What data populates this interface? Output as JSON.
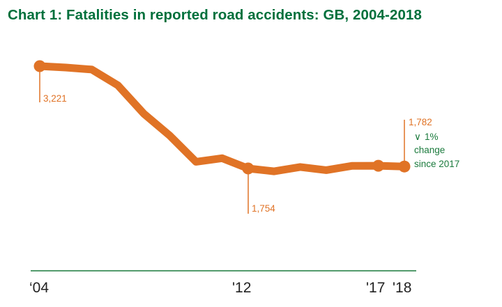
{
  "chart_data": {
    "type": "line",
    "title": "Chart 1: Fatalities in reported road accidents: GB, 2004-2018",
    "xlabel": "",
    "ylabel": "",
    "x": [
      2004,
      2005,
      2006,
      2007,
      2008,
      2009,
      2010,
      2011,
      2012,
      2013,
      2014,
      2015,
      2016,
      2017,
      2018
    ],
    "series": [
      {
        "values": [
          3221,
          3201,
          3172,
          2946,
          2538,
          2222,
          1850,
          1901,
          1754,
          1713,
          1775,
          1730,
          1792,
          1793,
          1782
        ]
      }
    ],
    "highlighted_points": [
      2004,
      2012,
      2017,
      2018
    ],
    "ylim": [
      1000,
      3500
    ],
    "grid": false,
    "line_color": "#e07326",
    "tick_labels": [
      {
        "x": 2004,
        "label": "‘04"
      },
      {
        "x": 2012,
        "label": "'12"
      },
      {
        "x": 2017,
        "label": "'17"
      },
      {
        "x": 2018,
        "label": "'18"
      }
    ],
    "data_labels": [
      {
        "x": 2004,
        "label": "3,221"
      },
      {
        "x": 2012,
        "label": "1,754"
      },
      {
        "x": 2018,
        "label": "1,782"
      }
    ],
    "annotation": {
      "arrow": "∨",
      "lines": [
        "1%",
        "change",
        "since 2017"
      ],
      "color": "#1a7a3c"
    },
    "axis_color": "#1a7a3c"
  }
}
